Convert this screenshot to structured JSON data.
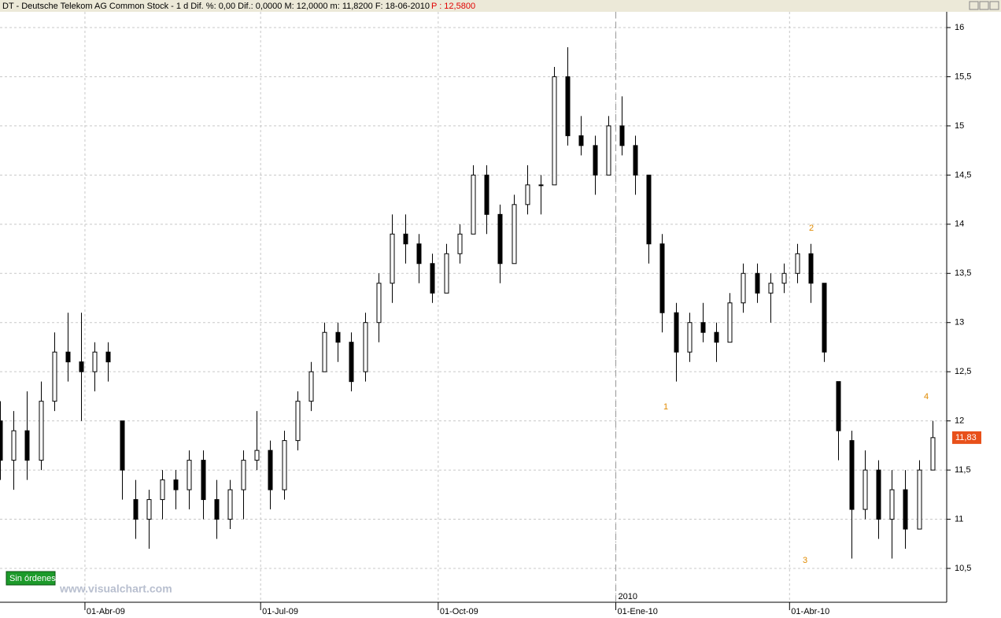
{
  "header": {
    "info": "DT - Deutsche Telekom AG Common Stock - 1 d  Dif. %: 0,00  Dif.: 0,0000  M: 12,0000  m: 11,8200  F: 18-06-2010",
    "price": "P : 12,5800"
  },
  "chart_data": {
    "type": "candlestick",
    "x": [
      "2009-02-16",
      "2009-02-23",
      "2009-03-02",
      "2009-03-09",
      "2009-03-16",
      "2009-03-23",
      "2009-03-30",
      "2009-04-06",
      "2009-04-13",
      "2009-04-20",
      "2009-04-27",
      "2009-05-04",
      "2009-05-11",
      "2009-05-18",
      "2009-05-25",
      "2009-06-01",
      "2009-06-08",
      "2009-06-15",
      "2009-06-22",
      "2009-06-29",
      "2009-07-06",
      "2009-07-13",
      "2009-07-20",
      "2009-07-27",
      "2009-08-03",
      "2009-08-10",
      "2009-08-17",
      "2009-08-24",
      "2009-08-31",
      "2009-09-07",
      "2009-09-14",
      "2009-09-21",
      "2009-09-28",
      "2009-10-05",
      "2009-10-12",
      "2009-10-19",
      "2009-10-26",
      "2009-11-02",
      "2009-11-09",
      "2009-11-16",
      "2009-11-23",
      "2009-11-30",
      "2009-12-07",
      "2009-12-14",
      "2009-12-21",
      "2009-12-28",
      "2010-01-04",
      "2010-01-11",
      "2010-01-18",
      "2010-01-25",
      "2010-02-01",
      "2010-02-08",
      "2010-02-15",
      "2010-02-22",
      "2010-03-01",
      "2010-03-08",
      "2010-03-15",
      "2010-03-22",
      "2010-03-29",
      "2010-04-05",
      "2010-04-12",
      "2010-04-19",
      "2010-04-26",
      "2010-05-03",
      "2010-05-10",
      "2010-05-17",
      "2010-05-24",
      "2010-05-31",
      "2010-06-07",
      "2010-06-14"
    ],
    "open": [
      12.0,
      11.6,
      11.9,
      11.6,
      12.2,
      12.7,
      12.6,
      12.5,
      12.7,
      12.0,
      11.2,
      11.0,
      11.2,
      11.4,
      11.3,
      11.6,
      11.2,
      11.0,
      11.3,
      11.6,
      11.7,
      11.3,
      11.8,
      12.2,
      12.5,
      12.9,
      12.8,
      12.5,
      13.0,
      13.4,
      13.9,
      13.8,
      13.6,
      13.3,
      13.7,
      13.9,
      14.5,
      14.1,
      13.6,
      14.2,
      14.4,
      14.4,
      15.5,
      14.9,
      14.8,
      14.5,
      15.0,
      14.8,
      14.5,
      13.8,
      13.1,
      12.7,
      13.0,
      12.9,
      12.8,
      13.2,
      13.5,
      13.3,
      13.4,
      13.5,
      13.7,
      13.4,
      12.4,
      11.8,
      11.1,
      11.5,
      11.0,
      11.3,
      10.9,
      11.5
    ],
    "high": [
      12.2,
      12.1,
      12.3,
      12.4,
      12.9,
      13.1,
      13.1,
      12.8,
      12.8,
      12.0,
      11.4,
      11.3,
      11.5,
      11.5,
      11.7,
      11.7,
      11.4,
      11.4,
      11.7,
      12.1,
      11.8,
      11.9,
      12.3,
      12.6,
      13.0,
      13.0,
      12.9,
      13.1,
      13.5,
      14.1,
      14.1,
      13.9,
      13.7,
      13.8,
      14.0,
      14.6,
      14.6,
      14.2,
      14.3,
      14.6,
      14.5,
      15.6,
      15.8,
      15.1,
      14.9,
      15.1,
      15.3,
      14.9,
      14.5,
      13.9,
      13.2,
      13.1,
      13.2,
      13.0,
      13.3,
      13.6,
      13.6,
      13.5,
      13.6,
      13.8,
      13.8,
      13.4,
      12.4,
      11.9,
      11.7,
      11.6,
      11.5,
      11.5,
      11.6,
      12.0
    ],
    "low": [
      11.4,
      11.3,
      11.4,
      11.5,
      12.1,
      12.4,
      12.0,
      12.3,
      12.4,
      11.2,
      10.8,
      10.7,
      11.0,
      11.1,
      11.1,
      11.0,
      10.8,
      10.9,
      11.0,
      11.5,
      11.1,
      11.2,
      11.7,
      12.1,
      12.5,
      12.6,
      12.3,
      12.4,
      12.8,
      13.2,
      13.6,
      13.4,
      13.2,
      13.3,
      13.6,
      13.9,
      13.9,
      13.4,
      13.6,
      14.1,
      14.1,
      14.4,
      14.8,
      14.7,
      14.3,
      14.5,
      14.7,
      14.3,
      13.6,
      12.9,
      12.4,
      12.6,
      12.8,
      12.6,
      12.8,
      13.1,
      13.2,
      13.0,
      13.3,
      13.4,
      13.2,
      12.6,
      11.6,
      10.6,
      11.0,
      10.8,
      10.6,
      10.7,
      10.9,
      11.5
    ],
    "close": [
      11.6,
      11.9,
      11.6,
      12.2,
      12.7,
      12.6,
      12.5,
      12.7,
      12.6,
      11.5,
      11.0,
      11.2,
      11.4,
      11.3,
      11.6,
      11.2,
      11.0,
      11.3,
      11.6,
      11.7,
      11.3,
      11.8,
      12.2,
      12.5,
      12.9,
      12.8,
      12.4,
      13.0,
      13.4,
      13.9,
      13.8,
      13.6,
      13.3,
      13.7,
      13.9,
      14.5,
      14.1,
      13.6,
      14.2,
      14.4,
      14.4,
      15.5,
      14.9,
      14.8,
      14.5,
      15.0,
      14.8,
      14.5,
      13.8,
      13.1,
      12.7,
      13.0,
      12.9,
      12.8,
      13.2,
      13.5,
      13.3,
      13.4,
      13.5,
      13.7,
      13.4,
      12.7,
      11.9,
      11.1,
      11.5,
      11.0,
      11.3,
      10.9,
      11.5,
      11.83
    ],
    "up_color": "#ffffff",
    "down_color": "#000000",
    "xlim": [
      "2009-02-16",
      "2010-06-21"
    ],
    "xticks": [
      {
        "value": "2009-04-01",
        "label": "01-Abr-09"
      },
      {
        "value": "2009-07-01",
        "label": "01-Jul-09"
      },
      {
        "value": "2009-10-01",
        "label": "01-Oct-09"
      },
      {
        "value": "2010-01-01",
        "label": "01-Ene-10"
      },
      {
        "value": "2010-04-01",
        "label": "01-Abr-10"
      }
    ],
    "year_marker": {
      "value": "2010-01-01",
      "label": "2010"
    },
    "ylim": [
      10.42,
      16.08
    ],
    "yticks": [
      {
        "value": 10.5,
        "label": "10,5"
      },
      11,
      {
        "value": 11.5,
        "label": "11,5"
      },
      12,
      {
        "value": 12.5,
        "label": "12,5"
      },
      13,
      {
        "value": 13.5,
        "label": "13,5"
      },
      14,
      {
        "value": 14.5,
        "label": "14,5"
      },
      15,
      {
        "value": 15.5,
        "label": "15,5"
      },
      16
    ],
    "last_price": {
      "value": 11.83,
      "label": "11,83"
    },
    "annotations": [
      "1",
      "2",
      "3",
      "4"
    ],
    "grid": true
  },
  "status": "Sin órdenes",
  "watermark": "www.visualchart.com"
}
